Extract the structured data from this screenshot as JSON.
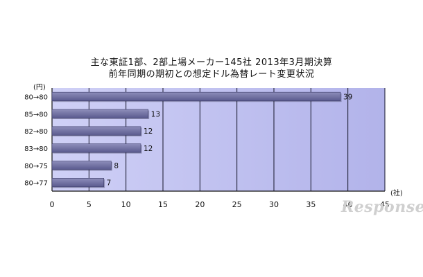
{
  "chart_data": {
    "type": "bar",
    "orientation": "horizontal",
    "title": "主な東証1部、2部上場メーカー145社 2013年3月期決算",
    "subtitle": "前年同期の期初との想定ドル為替レート変更状況",
    "ylabel": "(円)",
    "xlabel": "(社)",
    "categories": [
      "80→80",
      "85→80",
      "82→80",
      "83→80",
      "80→75",
      "80→77"
    ],
    "values": [
      39,
      13,
      12,
      12,
      8,
      7
    ],
    "xlim": [
      0,
      45
    ],
    "xticks": [
      0,
      5,
      10,
      15,
      20,
      25,
      30,
      35,
      40,
      45
    ],
    "grid": true,
    "data_labels": true,
    "colors": {
      "plot_background": "#bebff0",
      "bar_fill": "#5a5a8e",
      "bar_highlight": "#8e8eba",
      "grid": "#141428"
    }
  },
  "watermark": "Response"
}
